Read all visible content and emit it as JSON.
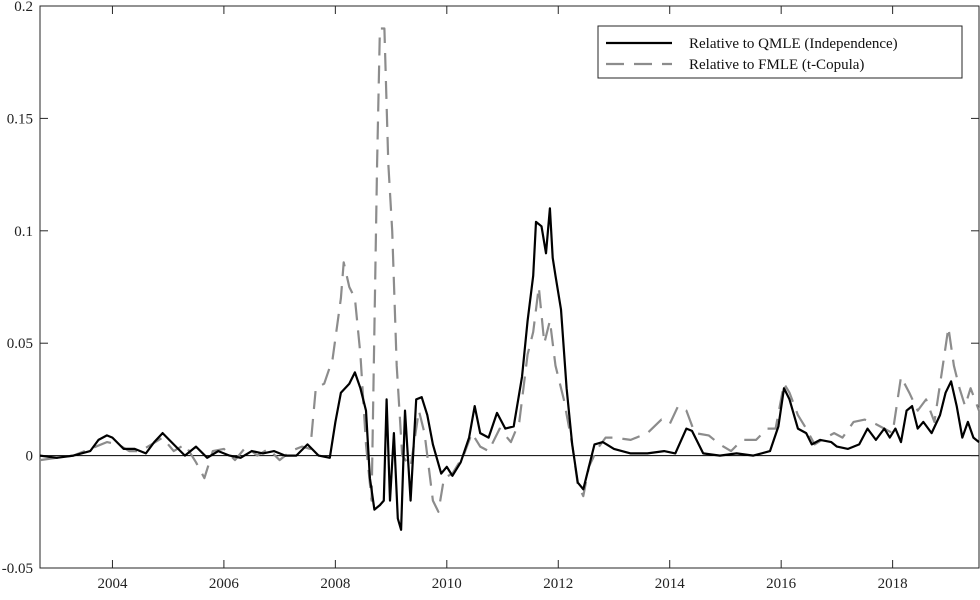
{
  "chart_data": {
    "type": "line",
    "title": "",
    "xlabel": "",
    "ylabel": "",
    "xlim": [
      2002.7,
      2019.55
    ],
    "ylim": [
      -0.05,
      0.2
    ],
    "x_ticks": [
      2004,
      2006,
      2008,
      2010,
      2012,
      2014,
      2016,
      2018
    ],
    "x_tick_labels": [
      "2004",
      "2006",
      "2008",
      "2010",
      "2012",
      "2014",
      "2016",
      "2018"
    ],
    "y_ticks": [
      -0.05,
      0,
      0.05,
      0.1,
      0.15,
      0.2
    ],
    "y_tick_labels": [
      "-0.05",
      "0",
      "0.05",
      "0.1",
      "0.15",
      "0.2"
    ],
    "grid": false,
    "legend_position": "top-right",
    "zero_line": true,
    "series": [
      {
        "name": "Relative to QMLE (Independence)",
        "style": "solid",
        "color": "#000000",
        "points": [
          [
            2002.7,
            0.0
          ],
          [
            2003.0,
            -0.001
          ],
          [
            2003.3,
            0.0
          ],
          [
            2003.6,
            0.002
          ],
          [
            2003.75,
            0.007
          ],
          [
            2003.9,
            0.009
          ],
          [
            2004.0,
            0.008
          ],
          [
            2004.2,
            0.003
          ],
          [
            2004.4,
            0.003
          ],
          [
            2004.6,
            0.001
          ],
          [
            2004.75,
            0.006
          ],
          [
            2004.9,
            0.01
          ],
          [
            2005.1,
            0.005
          ],
          [
            2005.3,
            0.0
          ],
          [
            2005.5,
            0.004
          ],
          [
            2005.7,
            -0.001
          ],
          [
            2005.9,
            0.002
          ],
          [
            2006.1,
            0.0
          ],
          [
            2006.3,
            -0.001
          ],
          [
            2006.5,
            0.002
          ],
          [
            2006.7,
            0.001
          ],
          [
            2006.9,
            0.002
          ],
          [
            2007.1,
            0.0
          ],
          [
            2007.3,
            0.0
          ],
          [
            2007.5,
            0.005
          ],
          [
            2007.7,
            0.0
          ],
          [
            2007.9,
            -0.001
          ],
          [
            2008.0,
            0.015
          ],
          [
            2008.1,
            0.028
          ],
          [
            2008.25,
            0.032
          ],
          [
            2008.35,
            0.037
          ],
          [
            2008.45,
            0.03
          ],
          [
            2008.55,
            0.02
          ],
          [
            2008.62,
            -0.01
          ],
          [
            2008.7,
            -0.024
          ],
          [
            2008.8,
            -0.022
          ],
          [
            2008.87,
            -0.02
          ],
          [
            2008.92,
            0.025
          ],
          [
            2008.98,
            -0.02
          ],
          [
            2009.05,
            0.01
          ],
          [
            2009.12,
            -0.028
          ],
          [
            2009.18,
            -0.033
          ],
          [
            2009.25,
            0.02
          ],
          [
            2009.35,
            -0.02
          ],
          [
            2009.45,
            0.025
          ],
          [
            2009.55,
            0.026
          ],
          [
            2009.65,
            0.018
          ],
          [
            2009.75,
            0.005
          ],
          [
            2009.9,
            -0.008
          ],
          [
            2010.0,
            -0.005
          ],
          [
            2010.1,
            -0.009
          ],
          [
            2010.25,
            -0.003
          ],
          [
            2010.4,
            0.008
          ],
          [
            2010.5,
            0.022
          ],
          [
            2010.6,
            0.01
          ],
          [
            2010.75,
            0.008
          ],
          [
            2010.9,
            0.019
          ],
          [
            2011.05,
            0.012
          ],
          [
            2011.2,
            0.013
          ],
          [
            2011.35,
            0.035
          ],
          [
            2011.45,
            0.06
          ],
          [
            2011.55,
            0.08
          ],
          [
            2011.6,
            0.104
          ],
          [
            2011.7,
            0.102
          ],
          [
            2011.78,
            0.09
          ],
          [
            2011.85,
            0.11
          ],
          [
            2011.9,
            0.088
          ],
          [
            2011.95,
            0.08
          ],
          [
            2012.05,
            0.065
          ],
          [
            2012.15,
            0.03
          ],
          [
            2012.25,
            0.005
          ],
          [
            2012.35,
            -0.012
          ],
          [
            2012.45,
            -0.015
          ],
          [
            2012.55,
            -0.005
          ],
          [
            2012.65,
            0.005
          ],
          [
            2012.8,
            0.006
          ],
          [
            2013.0,
            0.003
          ],
          [
            2013.3,
            0.001
          ],
          [
            2013.6,
            0.001
          ],
          [
            2013.9,
            0.002
          ],
          [
            2014.1,
            0.001
          ],
          [
            2014.3,
            0.012
          ],
          [
            2014.4,
            0.011
          ],
          [
            2014.6,
            0.001
          ],
          [
            2014.9,
            0.0
          ],
          [
            2015.2,
            0.001
          ],
          [
            2015.5,
            0.0
          ],
          [
            2015.8,
            0.002
          ],
          [
            2015.95,
            0.013
          ],
          [
            2016.05,
            0.03
          ],
          [
            2016.15,
            0.025
          ],
          [
            2016.3,
            0.012
          ],
          [
            2016.45,
            0.01
          ],
          [
            2016.55,
            0.005
          ],
          [
            2016.7,
            0.007
          ],
          [
            2016.9,
            0.006
          ],
          [
            2017.0,
            0.004
          ],
          [
            2017.2,
            0.003
          ],
          [
            2017.4,
            0.005
          ],
          [
            2017.55,
            0.012
          ],
          [
            2017.7,
            0.007
          ],
          [
            2017.85,
            0.012
          ],
          [
            2017.95,
            0.008
          ],
          [
            2018.05,
            0.012
          ],
          [
            2018.15,
            0.006
          ],
          [
            2018.25,
            0.02
          ],
          [
            2018.35,
            0.022
          ],
          [
            2018.45,
            0.012
          ],
          [
            2018.55,
            0.015
          ],
          [
            2018.7,
            0.01
          ],
          [
            2018.85,
            0.018
          ],
          [
            2018.95,
            0.028
          ],
          [
            2019.05,
            0.033
          ],
          [
            2019.15,
            0.022
          ],
          [
            2019.25,
            0.008
          ],
          [
            2019.35,
            0.015
          ],
          [
            2019.45,
            0.008
          ],
          [
            2019.55,
            0.006
          ]
        ]
      },
      {
        "name": "Relative to FMLE (t-Copula)",
        "style": "dashed",
        "color": "#8c8c8c",
        "points": [
          [
            2002.7,
            -0.002
          ],
          [
            2003.0,
            -0.001
          ],
          [
            2003.3,
            0.0
          ],
          [
            2003.6,
            0.003
          ],
          [
            2003.9,
            0.006
          ],
          [
            2004.1,
            0.005
          ],
          [
            2004.3,
            0.002
          ],
          [
            2004.5,
            0.002
          ],
          [
            2004.7,
            0.005
          ],
          [
            2004.9,
            0.008
          ],
          [
            2005.1,
            0.002
          ],
          [
            2005.3,
            0.005
          ],
          [
            2005.5,
            -0.003
          ],
          [
            2005.65,
            -0.01
          ],
          [
            2005.8,
            0.002
          ],
          [
            2006.0,
            0.003
          ],
          [
            2006.2,
            -0.002
          ],
          [
            2006.4,
            0.004
          ],
          [
            2006.6,
            0.0
          ],
          [
            2006.8,
            0.003
          ],
          [
            2007.0,
            -0.002
          ],
          [
            2007.2,
            0.002
          ],
          [
            2007.4,
            0.004
          ],
          [
            2007.55,
            0.003
          ],
          [
            2007.65,
            0.03
          ],
          [
            2007.8,
            0.032
          ],
          [
            2007.95,
            0.043
          ],
          [
            2008.1,
            0.07
          ],
          [
            2008.15,
            0.086
          ],
          [
            2008.25,
            0.075
          ],
          [
            2008.35,
            0.07
          ],
          [
            2008.45,
            0.045
          ],
          [
            2008.55,
            0.005
          ],
          [
            2008.65,
            -0.02
          ],
          [
            2008.75,
            0.13
          ],
          [
            2008.8,
            0.19
          ],
          [
            2008.88,
            0.19
          ],
          [
            2008.95,
            0.13
          ],
          [
            2009.02,
            0.1
          ],
          [
            2009.1,
            0.04
          ],
          [
            2009.2,
            0.0
          ],
          [
            2009.35,
            -0.005
          ],
          [
            2009.5,
            0.02
          ],
          [
            2009.6,
            0.01
          ],
          [
            2009.75,
            -0.02
          ],
          [
            2009.85,
            -0.025
          ],
          [
            2009.95,
            -0.01
          ],
          [
            2010.1,
            -0.008
          ],
          [
            2010.3,
            0.0
          ],
          [
            2010.45,
            0.01
          ],
          [
            2010.6,
            0.004
          ],
          [
            2010.75,
            0.002
          ],
          [
            2010.95,
            0.012
          ],
          [
            2011.15,
            0.006
          ],
          [
            2011.3,
            0.015
          ],
          [
            2011.45,
            0.045
          ],
          [
            2011.55,
            0.055
          ],
          [
            2011.65,
            0.075
          ],
          [
            2011.75,
            0.05
          ],
          [
            2011.85,
            0.06
          ],
          [
            2011.95,
            0.04
          ],
          [
            2012.1,
            0.025
          ],
          [
            2012.25,
            0.005
          ],
          [
            2012.35,
            -0.013
          ],
          [
            2012.45,
            -0.018
          ],
          [
            2012.55,
            -0.005
          ],
          [
            2012.7,
            0.003
          ],
          [
            2012.85,
            0.008
          ],
          [
            2013.0,
            0.008
          ],
          [
            2013.3,
            0.007
          ],
          [
            2013.6,
            0.01
          ],
          [
            2013.85,
            0.016
          ],
          [
            2014.0,
            0.014
          ],
          [
            2014.15,
            0.022
          ],
          [
            2014.3,
            0.02
          ],
          [
            2014.45,
            0.01
          ],
          [
            2014.7,
            0.009
          ],
          [
            2014.9,
            0.005
          ],
          [
            2015.1,
            0.002
          ],
          [
            2015.3,
            0.007
          ],
          [
            2015.55,
            0.007
          ],
          [
            2015.75,
            0.012
          ],
          [
            2015.9,
            0.012
          ],
          [
            2016.05,
            0.032
          ],
          [
            2016.15,
            0.028
          ],
          [
            2016.3,
            0.018
          ],
          [
            2016.45,
            0.012
          ],
          [
            2016.6,
            0.005
          ],
          [
            2016.8,
            0.008
          ],
          [
            2016.95,
            0.01
          ],
          [
            2017.1,
            0.008
          ],
          [
            2017.3,
            0.015
          ],
          [
            2017.5,
            0.016
          ],
          [
            2017.7,
            0.014
          ],
          [
            2017.85,
            0.012
          ],
          [
            2018.0,
            0.01
          ],
          [
            2018.15,
            0.035
          ],
          [
            2018.3,
            0.028
          ],
          [
            2018.45,
            0.02
          ],
          [
            2018.6,
            0.025
          ],
          [
            2018.75,
            0.015
          ],
          [
            2018.9,
            0.04
          ],
          [
            2019.0,
            0.057
          ],
          [
            2019.1,
            0.04
          ],
          [
            2019.2,
            0.03
          ],
          [
            2019.3,
            0.022
          ],
          [
            2019.4,
            0.03
          ],
          [
            2019.55,
            0.02
          ]
        ]
      }
    ]
  }
}
